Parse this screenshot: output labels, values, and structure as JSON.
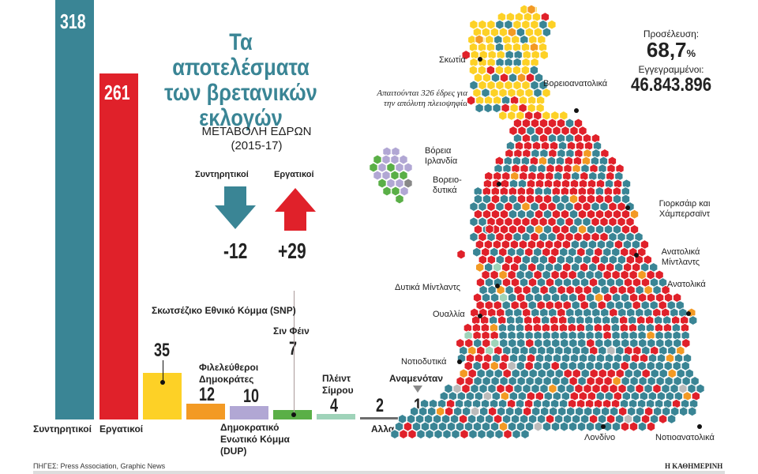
{
  "title": "Τα αποτελέσματα των βρετανικών εκλογών",
  "change": {
    "heading": "ΜΕΤΑΒΟΛΗ ΕΔΡΩΝ",
    "period": "(2015-17)",
    "con_label": "Συντηρητικοί",
    "lab_label": "Εργατικοί",
    "con_value": "-12",
    "lab_value": "+29",
    "con_arrow": "arrow-down-icon",
    "lab_arrow": "arrow-up-icon"
  },
  "turnout": {
    "label": "Προσέλευση:",
    "value": "68,7",
    "unit": "%",
    "registered_label": "Εγγεγραμμένοι:",
    "registered_value": "46.843.896"
  },
  "majority_note": "Απαιτούνται 326 έδρες για την απόλυτη πλειοψηφία",
  "expected_label": "Αναμενόταν",
  "expected_value": "1",
  "chart_data": {
    "type": "bar",
    "categories": [
      "Συντηρητικοί",
      "Εργατικοί",
      "Σκωτσέζικο Εθνικό Κόμμα (SNP)",
      "Φιλελεύθεροι Δημοκράτες",
      "Δημοκρατικό Ενωτικό Κόμμα (DUP)",
      "Σιν Φέιν",
      "Πλέιντ Σίμρου",
      "Αλλα"
    ],
    "values": [
      318,
      261,
      35,
      12,
      10,
      7,
      4,
      2
    ],
    "value_labels": [
      "318",
      "261",
      "35",
      "12",
      "10",
      "7",
      "4",
      "2"
    ],
    "colors": [
      "#3a8595",
      "#e0212a",
      "#fdd126",
      "#f39a24",
      "#b1a7d4",
      "#5aaf47",
      "#9fd3b9",
      "#6d6d6d"
    ]
  },
  "regions": [
    "Σκωτία",
    "Βορειοανατολικά",
    "Βόρεια Ιρλανδία",
    "Βορειο-δυτικά",
    "Γιορκσάιρ και Χάμπερσαϊντ",
    "Ανατολικά Μίντλαντς",
    "Δυτικά Μίντλαντς",
    "Ανατολικά",
    "Ουαλλία",
    "Νοτιοδυτικά",
    "Λονδίνο",
    "Νοτιοανατολικά"
  ],
  "source": "ΠΗΓΕΣ: Press Association, Graphic News",
  "publisher": "Η ΚΑΘΗΜΕΡΙΝΗ"
}
